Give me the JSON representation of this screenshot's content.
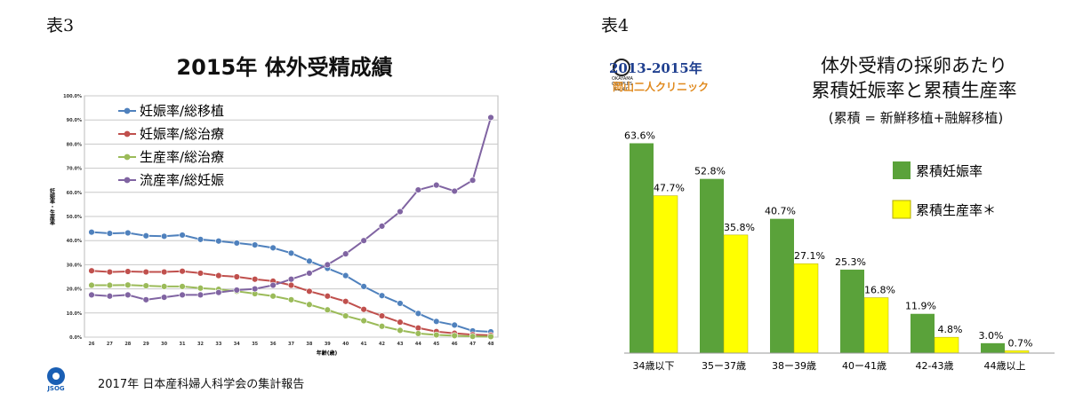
{
  "captions": {
    "left": "表3",
    "right": "表4"
  },
  "left": {
    "title": "2015年 体外受精成績",
    "source": "2017年 日本産科婦人科学会の集計報告",
    "logo_text": "JSOG"
  },
  "right": {
    "title_line1": "体外受精の採卵あたり",
    "title_line2": "累積妊娠率と累積生産率",
    "subtitle": "(累積 = 新鮮移植+融解移植)",
    "clinic_period": "2013-2015年",
    "clinic_name": "岡山二人クリニック"
  },
  "chart_data": [
    {
      "type": "line",
      "title": "2015年 体外受精成績",
      "xlabel": "年齢(歳)",
      "ylabel": "妊娠率・生産率",
      "x": [
        26,
        27,
        28,
        29,
        30,
        31,
        32,
        33,
        34,
        35,
        36,
        37,
        38,
        39,
        40,
        41,
        42,
        43,
        44,
        45,
        46,
        47,
        48
      ],
      "ylim": [
        0,
        100
      ],
      "yticks": [
        "0.0%",
        "10.0%",
        "20.0%",
        "30.0%",
        "40.0%",
        "50.0%",
        "60.0%",
        "70.0%",
        "80.0%",
        "90.0%",
        "100.0%"
      ],
      "grid": true,
      "legend": "top-left",
      "series": [
        {
          "name": "妊娠率/総移植",
          "color": "#4f81bd",
          "values": [
            43.5,
            43,
            43.2,
            42,
            41.8,
            42.3,
            40.5,
            39.8,
            39,
            38.2,
            37,
            34.8,
            31.5,
            28.5,
            25.5,
            21,
            17.2,
            14,
            9.8,
            6.5,
            5,
            2.6,
            2.2
          ]
        },
        {
          "name": "妊娠率/総治療",
          "color": "#c0504d",
          "values": [
            27.5,
            27,
            27.2,
            27,
            27,
            27.3,
            26.5,
            25.5,
            25,
            24,
            23.2,
            21.5,
            19,
            17,
            14.8,
            11.5,
            8.8,
            6.2,
            3.8,
            2.3,
            1.6,
            1,
            0.8
          ]
        },
        {
          "name": "生産率/総治療",
          "color": "#9bbb59",
          "values": [
            21.5,
            21.5,
            21.6,
            21.3,
            21,
            21,
            20.3,
            19.8,
            19,
            18,
            17,
            15.5,
            13.5,
            11.3,
            8.8,
            6.8,
            4.5,
            2.8,
            1.5,
            0.9,
            0.6,
            0.3,
            0.2
          ]
        },
        {
          "name": "流産率/総妊娠",
          "color": "#8064a2",
          "values": [
            17.5,
            17,
            17.5,
            15.5,
            16.5,
            17.5,
            17.5,
            18.5,
            19.5,
            20,
            21.5,
            24,
            26.5,
            30,
            34.5,
            40,
            46,
            52,
            61,
            63,
            60.5,
            65,
            91
          ]
        }
      ]
    },
    {
      "type": "bar",
      "title": "体外受精の採卵あたり 累積妊娠率と累積生産率",
      "categories": [
        "34歳以下",
        "35ー37歳",
        "38ー39歳",
        "40ー41歳",
        "42-43歳",
        "44歳以上"
      ],
      "ylim": [
        0,
        70
      ],
      "legend": "right",
      "series": [
        {
          "name": "累積妊娠率",
          "color": "#5aa23a",
          "values": [
            63.6,
            52.8,
            40.7,
            25.3,
            11.9,
            3.0
          ],
          "labels": [
            "63.6%",
            "52.8%",
            "40.7%",
            "25.3%",
            "11.9%",
            "3.0%"
          ]
        },
        {
          "name": "累積生産率＊",
          "color": "#ffff00",
          "values": [
            47.7,
            35.8,
            27.1,
            16.8,
            4.8,
            0.7
          ],
          "labels": [
            "47.7%",
            "35.8%",
            "27.1%",
            "16.8%",
            "4.8%",
            "0.7%"
          ]
        }
      ]
    }
  ]
}
